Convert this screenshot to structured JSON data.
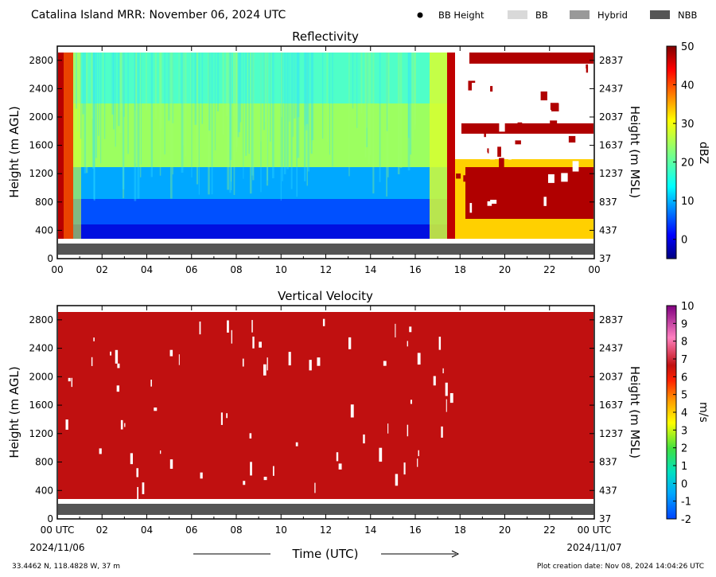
{
  "header": {
    "title": "Catalina Island MRR:  November 06, 2024 UTC",
    "legend": [
      {
        "label": "BB Height",
        "kind": "dot",
        "color": "#000000"
      },
      {
        "label": "BB",
        "kind": "rect",
        "color": "#d9d9d9"
      },
      {
        "label": "Hybrid",
        "kind": "rect",
        "color": "#999999"
      },
      {
        "label": "NBB",
        "kind": "rect",
        "color": "#555555"
      }
    ]
  },
  "footer": {
    "coords": "33.4462 N, 118.4828 W, 37 m",
    "creation": "Plot creation date: Nov 08, 2024 14:04:26 UTC",
    "start_date": "2024/11/06",
    "end_date": "2024/11/07",
    "xlabel": "Time (UTC)"
  },
  "chart_data": [
    {
      "type": "heatmap",
      "title": "Reflectivity",
      "ylabel": "Height (m AGL)",
      "ylabel_right": "Height (m MSL)",
      "x_ticks": [
        "00",
        "02",
        "04",
        "06",
        "08",
        "10",
        "12",
        "14",
        "16",
        "18",
        "20",
        "22",
        "00"
      ],
      "xlim": [
        0,
        24
      ],
      "ylim": [
        0,
        3000
      ],
      "y_ticks": [
        0,
        400,
        800,
        1200,
        1600,
        2000,
        2400,
        2800
      ],
      "y_ticks_right": [
        "37",
        "437",
        "837",
        "1237",
        "1637",
        "2037",
        "2437",
        "2837"
      ],
      "colorbar": {
        "label": "dBZ",
        "min": -5,
        "max": 50,
        "ticks": [
          "0",
          "10",
          "20",
          "30",
          "40",
          "50"
        ]
      },
      "bright_band_type": {
        "label": "NBB",
        "x": [
          0,
          24
        ]
      },
      "regions": [
        {
          "x": [
            0,
            0.7
          ],
          "y": [
            300,
            3000
          ],
          "dbz": 38
        },
        {
          "x": [
            0.7,
            17.4
          ],
          "y": [
            300,
            600
          ],
          "dbz": 3
        },
        {
          "x": [
            0.7,
            17.4
          ],
          "y": [
            600,
            1350
          ],
          "dbz": 7
        },
        {
          "x": [
            0.7,
            17.4
          ],
          "y": [
            1350,
            2200
          ],
          "dbz": 18
        },
        {
          "x": [
            0.7,
            17.4
          ],
          "y": [
            2200,
            3000
          ],
          "dbz": 14
        },
        {
          "x": [
            17.4,
            24
          ],
          "y": [
            300,
            700
          ],
          "dbz": 30
        },
        {
          "x": [
            17.4,
            24
          ],
          "y": [
            700,
            1400
          ],
          "dbz": 40
        },
        {
          "x": [
            17.4,
            24
          ],
          "y": [
            1900,
            2000
          ],
          "dbz": 40
        },
        {
          "x": [
            17.4,
            24
          ],
          "y": [
            2750,
            2850
          ],
          "dbz": 40
        }
      ]
    },
    {
      "type": "heatmap",
      "title": "Vertical Velocity",
      "ylabel": "Height (m AGL)",
      "ylabel_right": "Height (m MSL)",
      "x_ticks": [
        "00 UTC",
        "02",
        "04",
        "06",
        "08",
        "10",
        "12",
        "14",
        "16",
        "18",
        "20",
        "22",
        "00 UTC"
      ],
      "xlim": [
        0,
        24
      ],
      "ylim": [
        0,
        3000
      ],
      "y_ticks": [
        0,
        400,
        800,
        1200,
        1600,
        2000,
        2400,
        2800
      ],
      "y_ticks_right": [
        "37",
        "437",
        "837",
        "1237",
        "1637",
        "2037",
        "2437",
        "2837"
      ],
      "colorbar": {
        "label": "m/s",
        "min": -2,
        "max": 10,
        "ticks": [
          "-2",
          "-1",
          "0",
          "1",
          "2",
          "3",
          "4",
          "5",
          "6",
          "7",
          "8",
          "9",
          "10"
        ]
      },
      "bright_band_type": {
        "label": "NBB",
        "x": [
          0,
          24
        ]
      },
      "regions": [
        {
          "x": [
            0,
            24
          ],
          "y": [
            300,
            3000
          ],
          "velocity": 6.5
        }
      ]
    }
  ]
}
